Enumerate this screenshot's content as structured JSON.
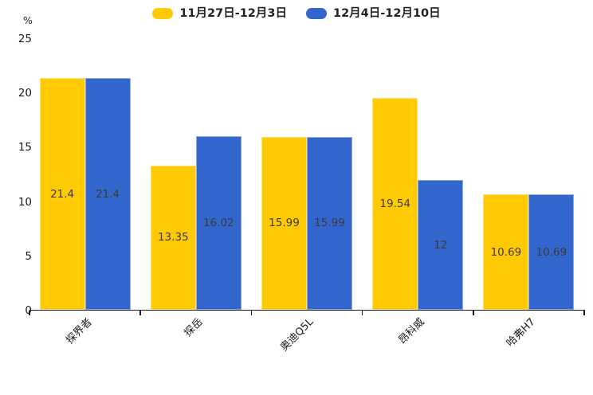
{
  "chart_data": {
    "type": "bar",
    "title": "",
    "unit_label": "%",
    "categories": [
      "探界者",
      "探岳",
      "奥迪Q5L",
      "昂科威",
      "哈弗H7"
    ],
    "series": [
      {
        "name": "11月27日-12月3日",
        "color": "#FFC903",
        "values": [
          21.4,
          13.35,
          15.99,
          19.54,
          10.69
        ]
      },
      {
        "name": "12月4日-12月10日",
        "color": "#3366CC",
        "values": [
          21.4,
          16.02,
          15.99,
          12,
          10.69
        ]
      }
    ],
    "ylim": [
      0,
      25
    ],
    "yticks": [
      0,
      5,
      10,
      15,
      20,
      25
    ],
    "grid": false,
    "legend_position": "top",
    "value_labels_inside_bars": true,
    "axis_color": "#1a1a1a",
    "value_label_color": "#3a3a3a"
  }
}
